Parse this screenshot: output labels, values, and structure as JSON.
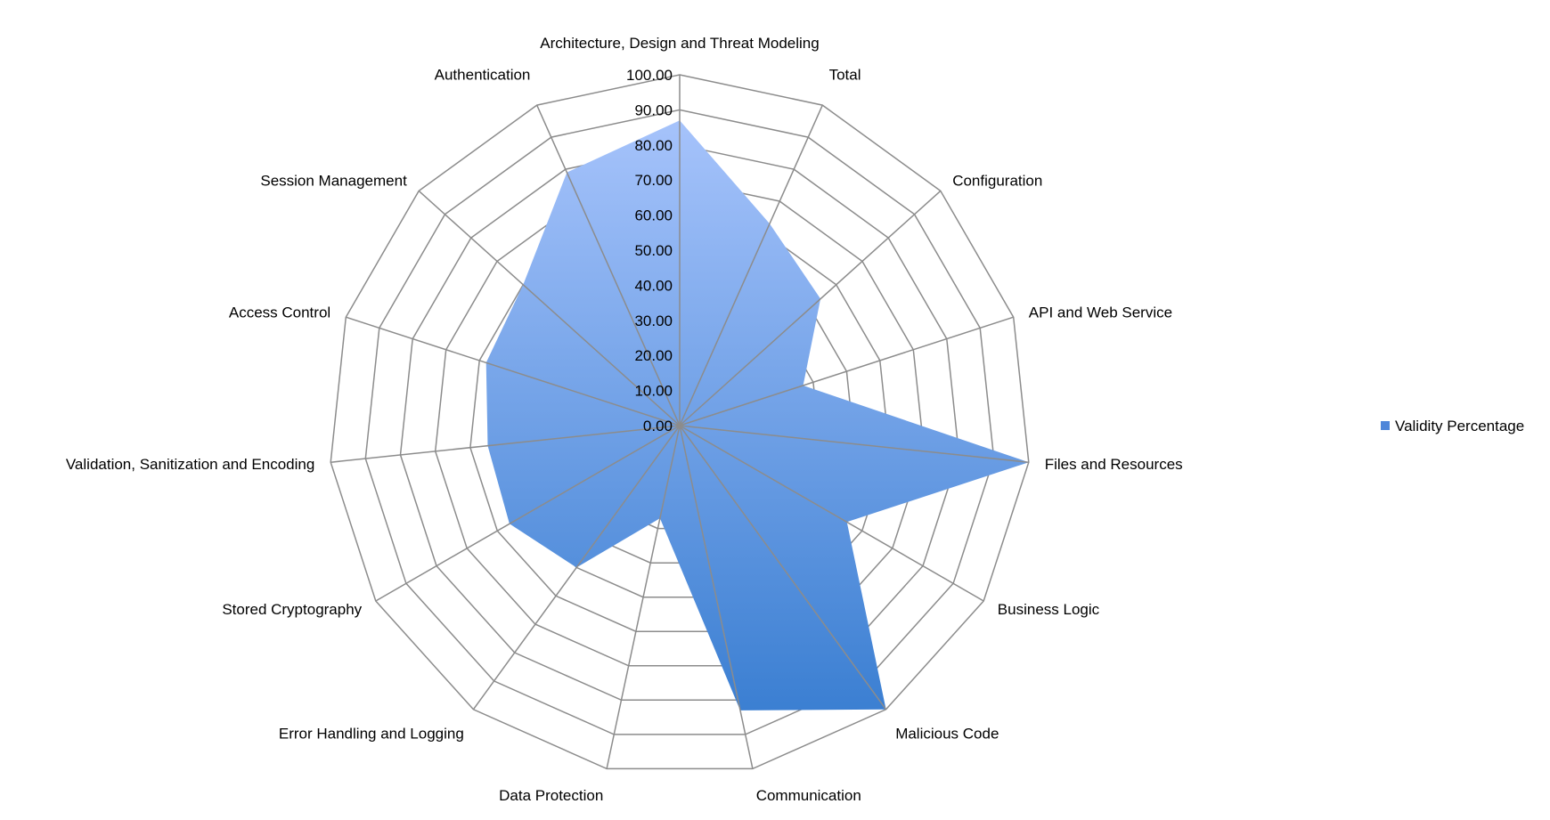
{
  "chart_data": {
    "type": "radar",
    "categories": [
      "Architecture, Design and Threat Modeling",
      "Total",
      "Configuration",
      "API and Web Service",
      "Files and Resources",
      "Business Logic",
      "Malicious Code",
      "Communication",
      "Data Protection",
      "Error Handling and Logging",
      "Stored Cryptography",
      "Validation, Sanitization and Encoding",
      "Access Control",
      "Session Management",
      "Authentication"
    ],
    "series": [
      {
        "name": "Validity Percentage",
        "values": [
          87,
          63,
          54,
          37,
          100,
          55,
          100,
          83,
          27,
          50,
          56,
          55,
          58,
          60,
          79
        ]
      }
    ],
    "tick_labels": [
      "0.00",
      "10.00",
      "20.00",
      "30.00",
      "40.00",
      "50.00",
      "60.00",
      "70.00",
      "80.00",
      "90.00",
      "100.00"
    ],
    "rlim": [
      0,
      100
    ],
    "grid": true,
    "legend_position": "right",
    "colors": {
      "fill_top": "#a6c3fb",
      "fill_bottom": "#3b7fd2",
      "grid": "#8c8c8c",
      "legend_marker": "#4f86d9"
    }
  }
}
